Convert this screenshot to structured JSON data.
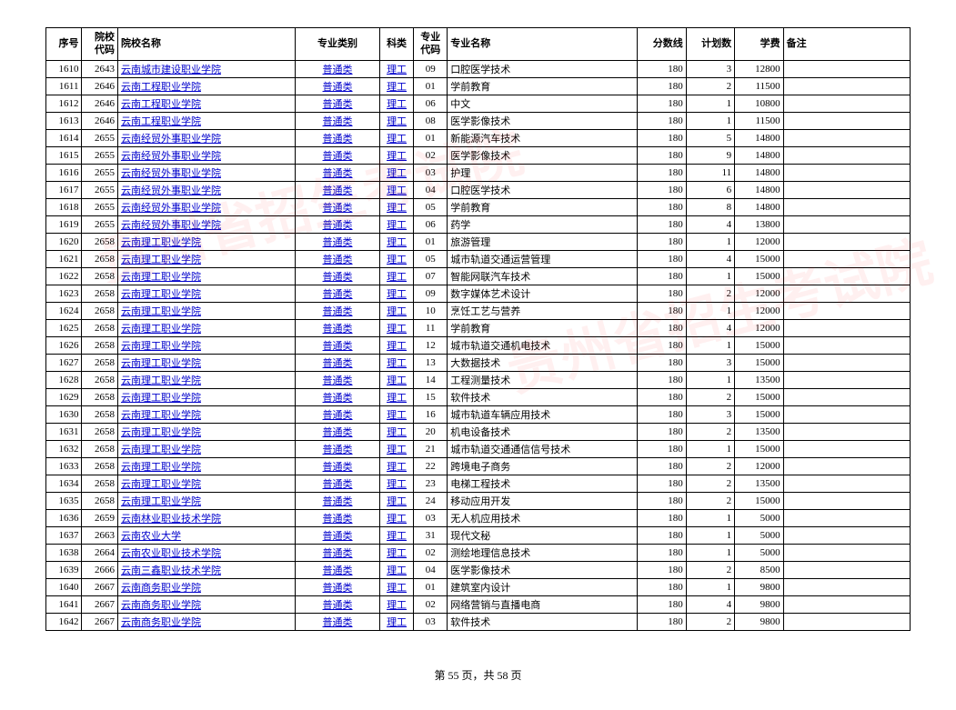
{
  "headers": {
    "seq": "序号",
    "school_code": "院校代码",
    "school_name": "院校名称",
    "major_type": "专业类别",
    "subject": "科类",
    "major_code": "专业代码",
    "major_name": "专业名称",
    "score": "分数线",
    "plan": "计划数",
    "tuition": "学费",
    "remark": "备注"
  },
  "rows": [
    {
      "seq": "1610",
      "school_code": "2643",
      "school_name": "云南城市建设职业学院",
      "major_type": "普通类",
      "subject": "理工",
      "major_code": "09",
      "major_name": "口腔医学技术",
      "score": "180",
      "plan": "3",
      "tuition": "12800",
      "remark": ""
    },
    {
      "seq": "1611",
      "school_code": "2646",
      "school_name": "云南工程职业学院",
      "major_type": "普通类",
      "subject": "理工",
      "major_code": "01",
      "major_name": "学前教育",
      "score": "180",
      "plan": "2",
      "tuition": "11500",
      "remark": ""
    },
    {
      "seq": "1612",
      "school_code": "2646",
      "school_name": "云南工程职业学院",
      "major_type": "普通类",
      "subject": "理工",
      "major_code": "06",
      "major_name": "中文",
      "score": "180",
      "plan": "1",
      "tuition": "10800",
      "remark": ""
    },
    {
      "seq": "1613",
      "school_code": "2646",
      "school_name": "云南工程职业学院",
      "major_type": "普通类",
      "subject": "理工",
      "major_code": "08",
      "major_name": "医学影像技术",
      "score": "180",
      "plan": "1",
      "tuition": "11500",
      "remark": ""
    },
    {
      "seq": "1614",
      "school_code": "2655",
      "school_name": "云南经贸外事职业学院",
      "major_type": "普通类",
      "subject": "理工",
      "major_code": "01",
      "major_name": "新能源汽车技术",
      "score": "180",
      "plan": "5",
      "tuition": "14800",
      "remark": ""
    },
    {
      "seq": "1615",
      "school_code": "2655",
      "school_name": "云南经贸外事职业学院",
      "major_type": "普通类",
      "subject": "理工",
      "major_code": "02",
      "major_name": "医学影像技术",
      "score": "180",
      "plan": "9",
      "tuition": "14800",
      "remark": ""
    },
    {
      "seq": "1616",
      "school_code": "2655",
      "school_name": "云南经贸外事职业学院",
      "major_type": "普通类",
      "subject": "理工",
      "major_code": "03",
      "major_name": "护理",
      "score": "180",
      "plan": "11",
      "tuition": "14800",
      "remark": ""
    },
    {
      "seq": "1617",
      "school_code": "2655",
      "school_name": "云南经贸外事职业学院",
      "major_type": "普通类",
      "subject": "理工",
      "major_code": "04",
      "major_name": "口腔医学技术",
      "score": "180",
      "plan": "6",
      "tuition": "14800",
      "remark": ""
    },
    {
      "seq": "1618",
      "school_code": "2655",
      "school_name": "云南经贸外事职业学院",
      "major_type": "普通类",
      "subject": "理工",
      "major_code": "05",
      "major_name": "学前教育",
      "score": "180",
      "plan": "8",
      "tuition": "14800",
      "remark": ""
    },
    {
      "seq": "1619",
      "school_code": "2655",
      "school_name": "云南经贸外事职业学院",
      "major_type": "普通类",
      "subject": "理工",
      "major_code": "06",
      "major_name": "药学",
      "score": "180",
      "plan": "4",
      "tuition": "13800",
      "remark": ""
    },
    {
      "seq": "1620",
      "school_code": "2658",
      "school_name": "云南理工职业学院",
      "major_type": "普通类",
      "subject": "理工",
      "major_code": "01",
      "major_name": "旅游管理",
      "score": "180",
      "plan": "1",
      "tuition": "12000",
      "remark": ""
    },
    {
      "seq": "1621",
      "school_code": "2658",
      "school_name": "云南理工职业学院",
      "major_type": "普通类",
      "subject": "理工",
      "major_code": "05",
      "major_name": "城市轨道交通运营管理",
      "score": "180",
      "plan": "4",
      "tuition": "15000",
      "remark": ""
    },
    {
      "seq": "1622",
      "school_code": "2658",
      "school_name": "云南理工职业学院",
      "major_type": "普通类",
      "subject": "理工",
      "major_code": "07",
      "major_name": "智能网联汽车技术",
      "score": "180",
      "plan": "1",
      "tuition": "15000",
      "remark": ""
    },
    {
      "seq": "1623",
      "school_code": "2658",
      "school_name": "云南理工职业学院",
      "major_type": "普通类",
      "subject": "理工",
      "major_code": "09",
      "major_name": "数字媒体艺术设计",
      "score": "180",
      "plan": "2",
      "tuition": "12000",
      "remark": ""
    },
    {
      "seq": "1624",
      "school_code": "2658",
      "school_name": "云南理工职业学院",
      "major_type": "普通类",
      "subject": "理工",
      "major_code": "10",
      "major_name": "烹饪工艺与营养",
      "score": "180",
      "plan": "1",
      "tuition": "12000",
      "remark": ""
    },
    {
      "seq": "1625",
      "school_code": "2658",
      "school_name": "云南理工职业学院",
      "major_type": "普通类",
      "subject": "理工",
      "major_code": "11",
      "major_name": "学前教育",
      "score": "180",
      "plan": "4",
      "tuition": "12000",
      "remark": ""
    },
    {
      "seq": "1626",
      "school_code": "2658",
      "school_name": "云南理工职业学院",
      "major_type": "普通类",
      "subject": "理工",
      "major_code": "12",
      "major_name": "城市轨道交通机电技术",
      "score": "180",
      "plan": "1",
      "tuition": "15000",
      "remark": ""
    },
    {
      "seq": "1627",
      "school_code": "2658",
      "school_name": "云南理工职业学院",
      "major_type": "普通类",
      "subject": "理工",
      "major_code": "13",
      "major_name": "大数据技术",
      "score": "180",
      "plan": "3",
      "tuition": "15000",
      "remark": ""
    },
    {
      "seq": "1628",
      "school_code": "2658",
      "school_name": "云南理工职业学院",
      "major_type": "普通类",
      "subject": "理工",
      "major_code": "14",
      "major_name": "工程测量技术",
      "score": "180",
      "plan": "1",
      "tuition": "13500",
      "remark": ""
    },
    {
      "seq": "1629",
      "school_code": "2658",
      "school_name": "云南理工职业学院",
      "major_type": "普通类",
      "subject": "理工",
      "major_code": "15",
      "major_name": "软件技术",
      "score": "180",
      "plan": "2",
      "tuition": "15000",
      "remark": ""
    },
    {
      "seq": "1630",
      "school_code": "2658",
      "school_name": "云南理工职业学院",
      "major_type": "普通类",
      "subject": "理工",
      "major_code": "16",
      "major_name": "城市轨道车辆应用技术",
      "score": "180",
      "plan": "3",
      "tuition": "15000",
      "remark": ""
    },
    {
      "seq": "1631",
      "school_code": "2658",
      "school_name": "云南理工职业学院",
      "major_type": "普通类",
      "subject": "理工",
      "major_code": "20",
      "major_name": "机电设备技术",
      "score": "180",
      "plan": "2",
      "tuition": "13500",
      "remark": ""
    },
    {
      "seq": "1632",
      "school_code": "2658",
      "school_name": "云南理工职业学院",
      "major_type": "普通类",
      "subject": "理工",
      "major_code": "21",
      "major_name": "城市轨道交通通信信号技术",
      "score": "180",
      "plan": "1",
      "tuition": "15000",
      "remark": ""
    },
    {
      "seq": "1633",
      "school_code": "2658",
      "school_name": "云南理工职业学院",
      "major_type": "普通类",
      "subject": "理工",
      "major_code": "22",
      "major_name": "跨境电子商务",
      "score": "180",
      "plan": "2",
      "tuition": "12000",
      "remark": ""
    },
    {
      "seq": "1634",
      "school_code": "2658",
      "school_name": "云南理工职业学院",
      "major_type": "普通类",
      "subject": "理工",
      "major_code": "23",
      "major_name": "电梯工程技术",
      "score": "180",
      "plan": "2",
      "tuition": "13500",
      "remark": ""
    },
    {
      "seq": "1635",
      "school_code": "2658",
      "school_name": "云南理工职业学院",
      "major_type": "普通类",
      "subject": "理工",
      "major_code": "24",
      "major_name": "移动应用开发",
      "score": "180",
      "plan": "2",
      "tuition": "15000",
      "remark": ""
    },
    {
      "seq": "1636",
      "school_code": "2659",
      "school_name": "云南林业职业技术学院",
      "major_type": "普通类",
      "subject": "理工",
      "major_code": "03",
      "major_name": "无人机应用技术",
      "score": "180",
      "plan": "1",
      "tuition": "5000",
      "remark": ""
    },
    {
      "seq": "1637",
      "school_code": "2663",
      "school_name": "云南农业大学",
      "major_type": "普通类",
      "subject": "理工",
      "major_code": "31",
      "major_name": "现代文秘",
      "score": "180",
      "plan": "1",
      "tuition": "5000",
      "remark": ""
    },
    {
      "seq": "1638",
      "school_code": "2664",
      "school_name": "云南农业职业技术学院",
      "major_type": "普通类",
      "subject": "理工",
      "major_code": "02",
      "major_name": "测绘地理信息技术",
      "score": "180",
      "plan": "1",
      "tuition": "5000",
      "remark": ""
    },
    {
      "seq": "1639",
      "school_code": "2666",
      "school_name": "云南三鑫职业技术学院",
      "major_type": "普通类",
      "subject": "理工",
      "major_code": "04",
      "major_name": "医学影像技术",
      "score": "180",
      "plan": "2",
      "tuition": "8500",
      "remark": ""
    },
    {
      "seq": "1640",
      "school_code": "2667",
      "school_name": "云南商务职业学院",
      "major_type": "普通类",
      "subject": "理工",
      "major_code": "01",
      "major_name": "建筑室内设计",
      "score": "180",
      "plan": "1",
      "tuition": "9800",
      "remark": ""
    },
    {
      "seq": "1641",
      "school_code": "2667",
      "school_name": "云南商务职业学院",
      "major_type": "普通类",
      "subject": "理工",
      "major_code": "02",
      "major_name": "网络营销与直播电商",
      "score": "180",
      "plan": "4",
      "tuition": "9800",
      "remark": ""
    },
    {
      "seq": "1642",
      "school_code": "2667",
      "school_name": "云南商务职业学院",
      "major_type": "普通类",
      "subject": "理工",
      "major_code": "03",
      "major_name": "软件技术",
      "score": "180",
      "plan": "2",
      "tuition": "9800",
      "remark": ""
    }
  ],
  "footer": {
    "text": "第 55 页，共 58 页"
  },
  "watermark": "贵州省招生考试院"
}
